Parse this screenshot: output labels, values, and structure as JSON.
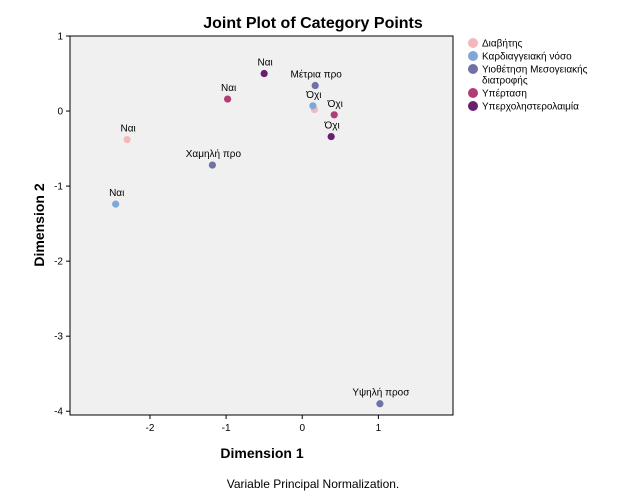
{
  "chart_data": {
    "type": "scatter",
    "title": "Joint Plot of Category Points",
    "xlabel": "Dimension 1",
    "ylabel": "Dimension 2",
    "xlim": [
      -3.05,
      1.98
    ],
    "ylim": [
      -4.05,
      1.0
    ],
    "xticks": [
      -2,
      -1,
      0,
      1
    ],
    "yticks": [
      1,
      0,
      -1,
      -2,
      -3,
      -4
    ],
    "grid": false,
    "legend_position": "right",
    "footnote": "Variable Principal Normalization.",
    "series": [
      {
        "name": "Διαβήτης",
        "color": "#F4B8BC",
        "points": [
          {
            "label": "Ναι",
            "x": -2.3,
            "y": -0.38
          },
          {
            "label": "",
            "x": 0.16,
            "y": 0.02
          }
        ]
      },
      {
        "name": "Καρδιαγγειακή νόσο",
        "color": "#7FA7DA",
        "points": [
          {
            "label": "Ναι",
            "x": -2.45,
            "y": -1.24
          },
          {
            "label": "Όχι",
            "x": 0.14,
            "y": 0.07
          }
        ]
      },
      {
        "name": "Υιοθέτηση Μεσογειακής διατροφής",
        "color": "#7072A6",
        "points": [
          {
            "label": "Μέτρια προ",
            "x": 0.17,
            "y": 0.34
          },
          {
            "label": "Χαμηλή προ",
            "x": -1.18,
            "y": -0.72
          },
          {
            "label": "Υψηλή προσ",
            "x": 1.02,
            "y": -3.9
          }
        ]
      },
      {
        "name": "Υπέρταση",
        "color": "#B03C78",
        "points": [
          {
            "label": "Ναι",
            "x": -0.98,
            "y": 0.16
          },
          {
            "label": "Όχι",
            "x": 0.42,
            "y": -0.05
          }
        ]
      },
      {
        "name": "Υπερχοληστερολαιμία",
        "color": "#6A1F6E",
        "points": [
          {
            "label": "Ναι",
            "x": -0.5,
            "y": 0.5
          },
          {
            "label": "Όχι",
            "x": 0.38,
            "y": -0.34
          }
        ]
      }
    ]
  }
}
